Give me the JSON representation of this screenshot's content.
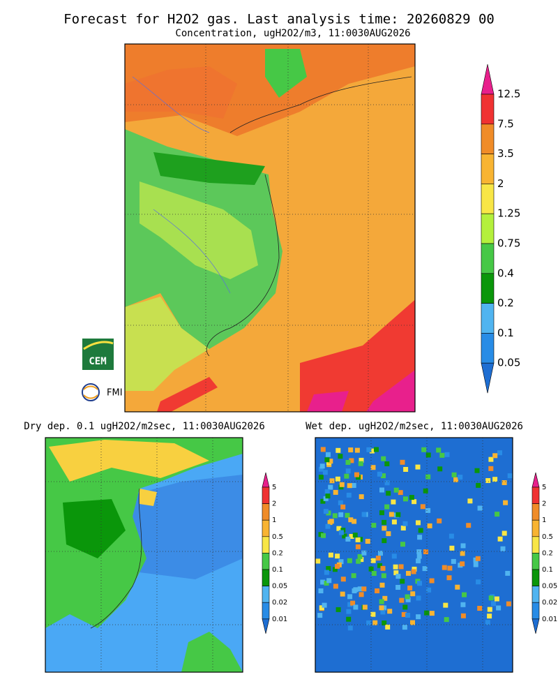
{
  "title": "Forecast for H2O2 gas. Last analysis time: 20260829 00",
  "panels": [
    {
      "subtitle": "Concentration, ugH2O2/m3, 11:0030AUG2026",
      "colorbar": {
        "labels": [
          "12.5",
          "7.5",
          "3.5",
          "2",
          "1.25",
          "0.75",
          "0.4",
          "0.2",
          "0.1",
          "0.05"
        ],
        "colors": [
          "#e8208c",
          "#f03232",
          "#f08c28",
          "#f8b432",
          "#f8e646",
          "#b4f03c",
          "#46c846",
          "#0a960a",
          "#50b4f0",
          "#288ce6",
          "#1e6ed2"
        ]
      }
    },
    {
      "subtitle": "Dry dep. 0.1 ugH2O2/m2sec, 11:0030AUG2026",
      "colorbar": {
        "labels": [
          "5",
          "2",
          "1",
          "0.5",
          "0.2",
          "0.1",
          "0.05",
          "0.02",
          "0.01"
        ],
        "colors": [
          "#e8208c",
          "#f03232",
          "#f08c28",
          "#f8b432",
          "#f8e646",
          "#46c846",
          "#0a960a",
          "#50b4f0",
          "#288ce6",
          "#1e6ed2"
        ]
      }
    },
    {
      "subtitle": "Wet dep. ugH2O2/m2sec, 11:0030AUG2026",
      "colorbar": {
        "labels": [
          "5",
          "2",
          "1",
          "0.5",
          "0.2",
          "0.1",
          "0.05",
          "0.02",
          "0.01"
        ],
        "colors": [
          "#e8208c",
          "#f03232",
          "#f08c28",
          "#f8b432",
          "#f8e646",
          "#46c846",
          "#0a960a",
          "#50b4f0",
          "#288ce6",
          "#1e6ed2"
        ]
      }
    }
  ],
  "logos": [
    "CEM",
    "FMI"
  ]
}
